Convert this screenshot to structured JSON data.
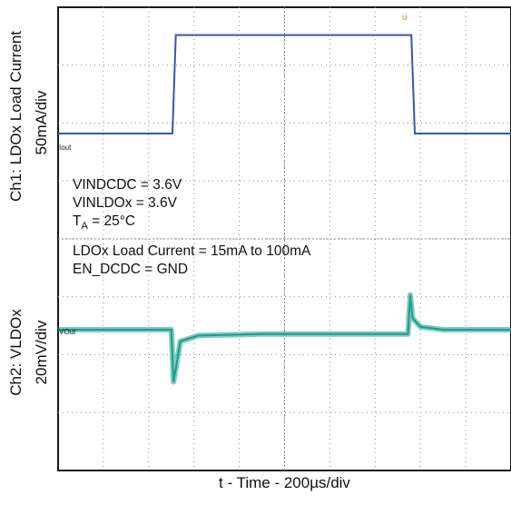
{
  "chart_data": {
    "type": "line",
    "title": "",
    "xlabel": "t - Time - 200µs/div",
    "ch1_label": "Ch1: LDOx Load Current",
    "ch1_scale": "50mA/div",
    "ch2_label": "Ch2: VLDOx",
    "ch2_scale": "20mV/div",
    "x_divisions": 10,
    "y_divisions": 8,
    "xlim_us": [
      0,
      2000
    ],
    "grid": true,
    "trace_markers": {
      "ch1": "Iout",
      "ch2": "VOut"
    },
    "trigger_marker": "u",
    "annotations": [
      "VINDCDC = 3.6V",
      "VINLDOx = 3.6V",
      "T_A = 25°C",
      "LDOx Load Current = 15mA to 100mA",
      "EN_DCDC = GND"
    ],
    "annotation_ta": {
      "main": "T",
      "sub": "A",
      "rest": " = 25°C"
    },
    "series": [
      {
        "name": "Ch1",
        "unit": "mA",
        "color": "#3a56a8",
        "x_us": [
          0,
          505,
          520,
          1560,
          1575,
          2000
        ],
        "values": [
          15,
          15,
          100,
          100,
          15,
          15
        ]
      },
      {
        "name": "Ch2",
        "unit": "mV (ac-coupled deviation)",
        "color": "#1a9e8e",
        "x_us": [
          0,
          490,
          500,
          510,
          540,
          620,
          900,
          1300,
          1500,
          1545,
          1555,
          1565,
          1600,
          1700,
          2000
        ],
        "values": [
          0,
          0,
          0,
          -18,
          -4,
          -2,
          -1.5,
          -1.5,
          -1.5,
          -1.5,
          12,
          4,
          1,
          0,
          0
        ]
      }
    ]
  },
  "colors": {
    "grid": "#8c8c8c",
    "frame": "#1a1a1a",
    "ch1": "#3a56a8",
    "ch2": "#1a9e8e"
  }
}
